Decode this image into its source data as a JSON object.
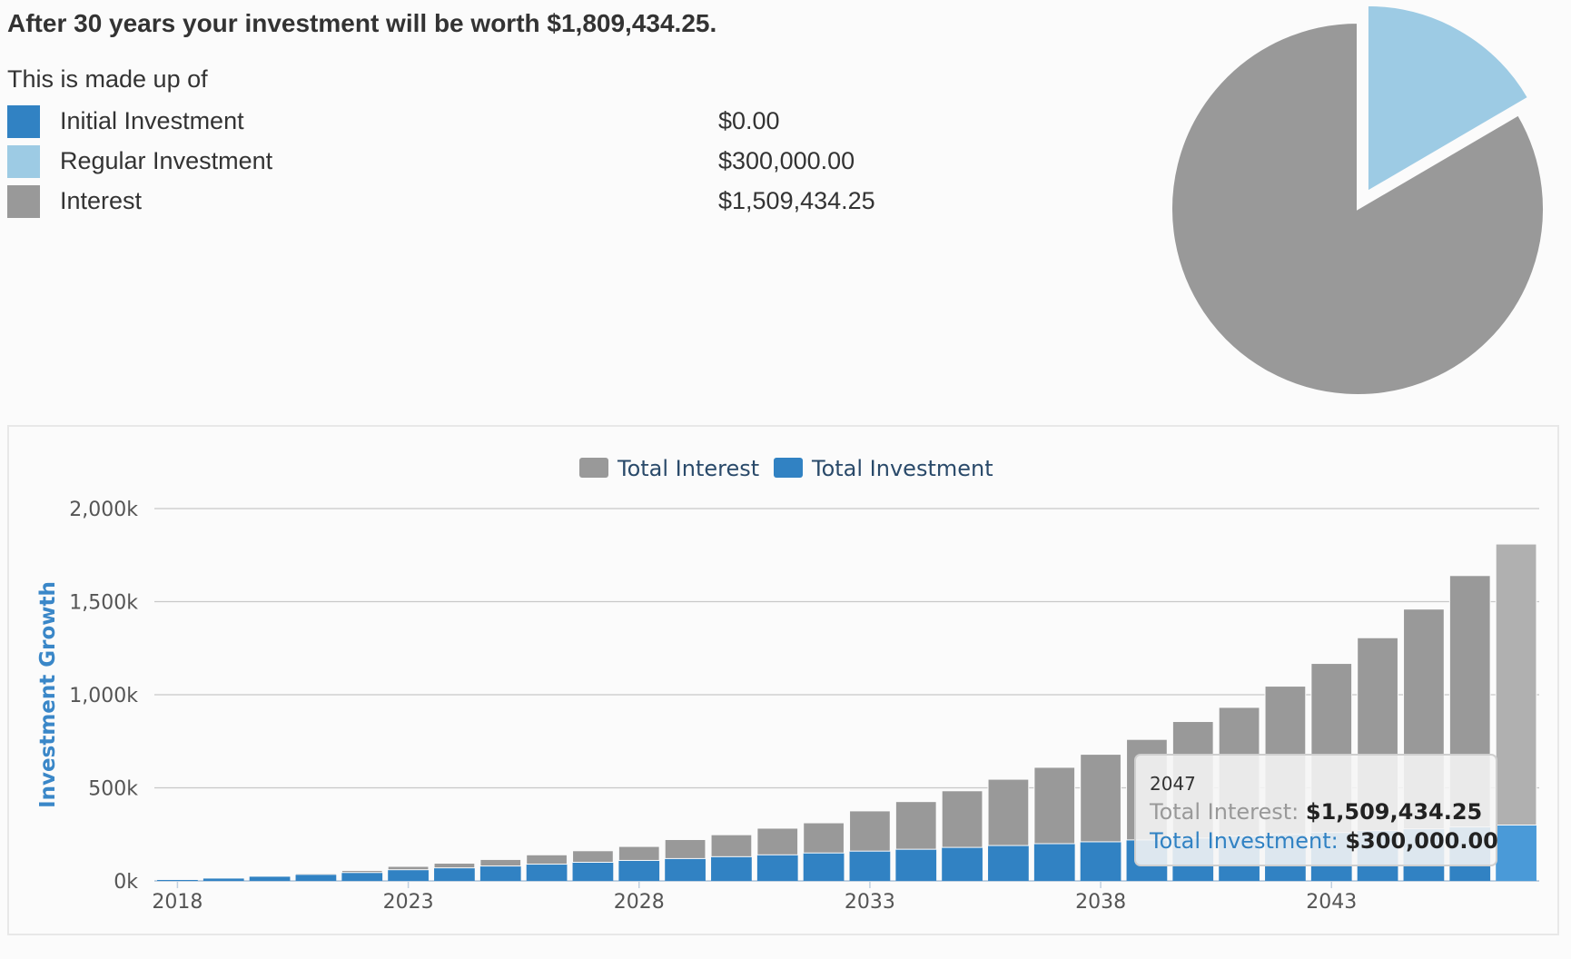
{
  "summary": {
    "headline": "After 30 years your investment will be worth $1,809,434.25.",
    "subline": "This is made up of",
    "items": [
      {
        "label": "Initial Investment",
        "value": "$0.00",
        "color": "#3182c3"
      },
      {
        "label": "Regular Investment",
        "value": "$300,000.00",
        "color": "#9dcbe4"
      },
      {
        "label": "Interest",
        "value": "$1,509,434.25",
        "color": "#999999"
      }
    ]
  },
  "pie_data": {
    "type": "pie",
    "slices": [
      {
        "label": "Initial Investment",
        "value": 0,
        "color": "#3182c3"
      },
      {
        "label": "Regular Investment",
        "value": 300000,
        "color": "#9dcbe4"
      },
      {
        "label": "Interest",
        "value": 1509434.25,
        "color": "#999999"
      }
    ]
  },
  "chart_data": {
    "type": "bar",
    "stacked": true,
    "ylabel": "Investment Growth",
    "ylim": [
      0,
      2000000
    ],
    "yticks": [
      0,
      500000,
      1000000,
      1500000,
      2000000
    ],
    "ytick_labels": [
      "0k",
      "500k",
      "1,000k",
      "1,500k",
      "2,000k"
    ],
    "xtick_labels": [
      "2018",
      "2023",
      "2028",
      "2033",
      "2038",
      "2043"
    ],
    "legend_position": "top-center",
    "grid": true,
    "categories": [
      "2018",
      "2019",
      "2020",
      "2021",
      "2022",
      "2023",
      "2024",
      "2025",
      "2026",
      "2027",
      "2028",
      "2029",
      "2030",
      "2031",
      "2032",
      "2033",
      "2034",
      "2035",
      "2036",
      "2037",
      "2038",
      "2039",
      "2040",
      "2041",
      "2042",
      "2043",
      "2044",
      "2045",
      "2046",
      "2047"
    ],
    "series": [
      {
        "name": "Total Investment",
        "color": "#3182c3",
        "values": [
          5000,
          15000,
          25000,
          35000,
          45000,
          60000,
          70000,
          80000,
          90000,
          100000,
          110000,
          120000,
          130000,
          140000,
          150000,
          160000,
          170000,
          180000,
          190000,
          200000,
          210000,
          220000,
          230000,
          240000,
          250000,
          260000,
          270000,
          280000,
          290000,
          300000
        ]
      },
      {
        "name": "Total Interest",
        "color": "#999999",
        "values": [
          0,
          1000,
          3000,
          6000,
          11000,
          18000,
          25000,
          35000,
          50000,
          62000,
          75000,
          102000,
          118000,
          143000,
          162000,
          216000,
          256000,
          304000,
          356000,
          410000,
          470000,
          540000,
          626000,
          692000,
          796000,
          908000,
          1036000,
          1180000,
          1350000,
          1509434.25
        ]
      }
    ],
    "tooltip": {
      "title": "2047",
      "interest_label": "Total Interest",
      "interest_value": "$1,509,434.25",
      "investment_label": "Total Investment",
      "investment_value": "$300,000.00"
    },
    "highlight_index": 29
  }
}
